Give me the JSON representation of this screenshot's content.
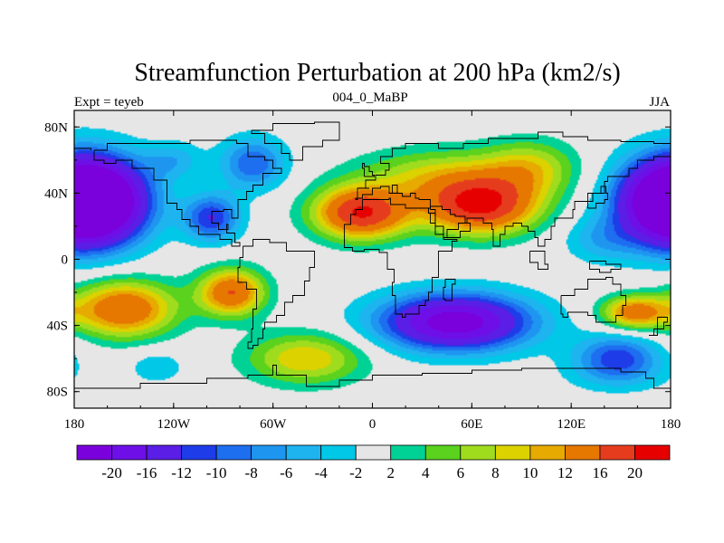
{
  "chart_data": {
    "type": "heatmap",
    "title": "Streamfunction Perturbation at 200 hPa (km2/s)",
    "left_string": "Expt = teyeb",
    "center_string": "004_0_MaBP",
    "right_string": "JJA",
    "xlim": [
      -180,
      180
    ],
    "ylim": [
      -90,
      90
    ],
    "x_ticks": [
      {
        "value": -180,
        "label": "180"
      },
      {
        "value": -120,
        "label": "120W"
      },
      {
        "value": -60,
        "label": "60W"
      },
      {
        "value": 0,
        "label": "0"
      },
      {
        "value": 60,
        "label": "60E"
      },
      {
        "value": 120,
        "label": "120E"
      },
      {
        "value": 180,
        "label": "180"
      }
    ],
    "y_ticks": [
      {
        "value": 80,
        "label": "80N"
      },
      {
        "value": 40,
        "label": "40N"
      },
      {
        "value": 0,
        "label": "0"
      },
      {
        "value": -40,
        "label": "40S"
      },
      {
        "value": -80,
        "label": "80S"
      }
    ],
    "levels": [
      -20,
      -16,
      -12,
      -10,
      -8,
      -6,
      -4,
      -2,
      2,
      4,
      6,
      8,
      10,
      12,
      16,
      20
    ],
    "level_labels": [
      "-20",
      "-16",
      "-12",
      "-10",
      "-8",
      "-6",
      "-4",
      "-2",
      "2",
      "4",
      "6",
      "8",
      "10",
      "12",
      "16",
      "20"
    ],
    "colors": [
      "#7a00dc",
      "#6e0fe8",
      "#5a1ee6",
      "#1e3ce8",
      "#1e6ef0",
      "#1e96f0",
      "#1eb4f0",
      "#00c8e6",
      "#e6e6e6",
      "#00d296",
      "#5ad21e",
      "#a0dc1e",
      "#dcd200",
      "#e6aa00",
      "#e67800",
      "#e63c1e",
      "#e60000"
    ],
    "field_centers": [
      {
        "lon": -165,
        "lat": 35,
        "value": -23,
        "sx": 22,
        "sy": 18
      },
      {
        "lon": 178,
        "lat": 35,
        "value": -23,
        "sx": 22,
        "sy": 18
      },
      {
        "lon": -97,
        "lat": 25,
        "value": -12,
        "sx": 12,
        "sy": 10
      },
      {
        "lon": -72,
        "lat": 58,
        "value": -10,
        "sx": 14,
        "sy": 11
      },
      {
        "lon": -120,
        "lat": 60,
        "value": -5,
        "sx": 12,
        "sy": 8
      },
      {
        "lon": 138,
        "lat": 12,
        "value": -5,
        "sx": 16,
        "sy": 10
      },
      {
        "lon": 50,
        "lat": -38,
        "value": -23,
        "sx": 32,
        "sy": 12
      },
      {
        "lon": 148,
        "lat": -58,
        "value": -10,
        "sx": 18,
        "sy": 9
      },
      {
        "lon": -130,
        "lat": -65,
        "value": -4,
        "sx": 12,
        "sy": 7
      },
      {
        "lon": 148,
        "lat": -70,
        "value": -4,
        "sx": 22,
        "sy": 8
      },
      {
        "lon": -7,
        "lat": 28,
        "value": 20,
        "sx": 20,
        "sy": 11
      },
      {
        "lon": 65,
        "lat": 32,
        "value": 20,
        "sx": 24,
        "sy": 12
      },
      {
        "lon": 40,
        "lat": 50,
        "value": 8,
        "sx": 35,
        "sy": 12
      },
      {
        "lon": 95,
        "lat": 55,
        "value": 8,
        "sx": 20,
        "sy": 12
      },
      {
        "lon": -150,
        "lat": -30,
        "value": 16,
        "sx": 22,
        "sy": 12
      },
      {
        "lon": -85,
        "lat": -20,
        "value": 16,
        "sx": 14,
        "sy": 10
      },
      {
        "lon": -40,
        "lat": -60,
        "value": 10,
        "sx": 25,
        "sy": 11
      },
      {
        "lon": 158,
        "lat": -32,
        "value": 14,
        "sx": 14,
        "sy": 7
      }
    ]
  }
}
